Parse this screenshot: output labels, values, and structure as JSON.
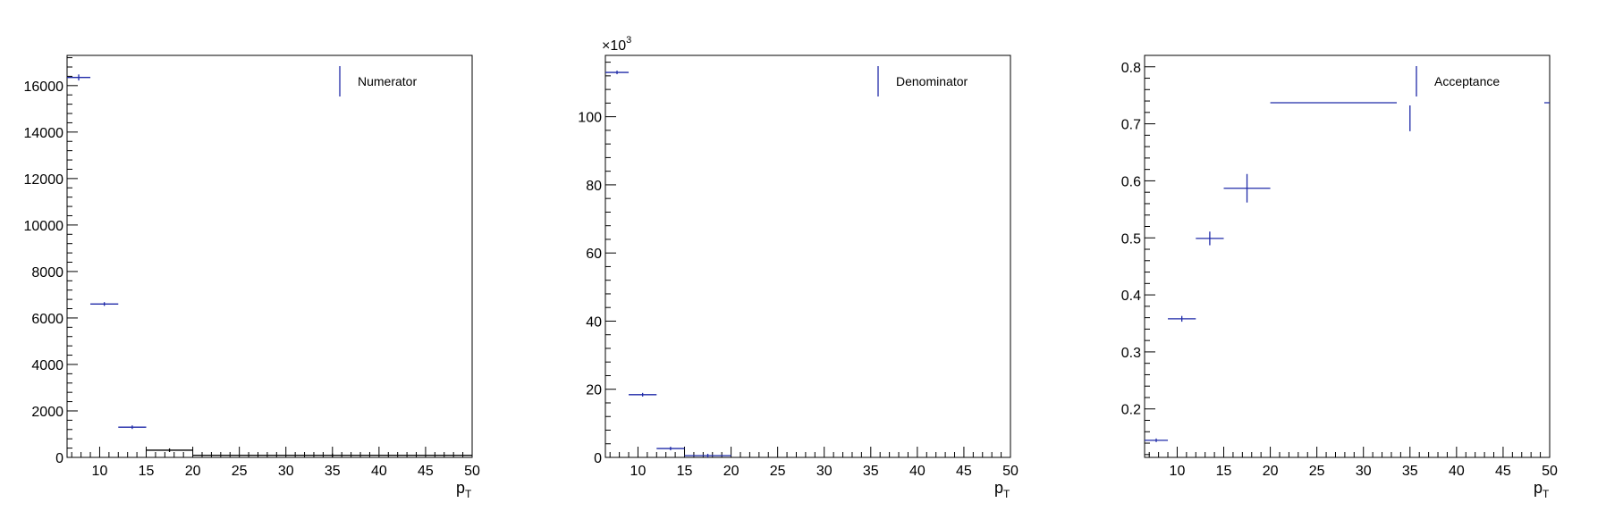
{
  "chart_data": [
    {
      "type": "scatter",
      "xlabel": "p",
      "xlabel_sub": "T",
      "xlim": [
        6.5,
        50
      ],
      "ylim": [
        0,
        17300
      ],
      "xticks": [
        10,
        15,
        20,
        25,
        30,
        35,
        40,
        45,
        50
      ],
      "xtick_labels": [
        "10",
        "15",
        "20",
        "25",
        "30",
        "35",
        "40",
        "45",
        "50"
      ],
      "yticks": [
        0,
        2000,
        4000,
        6000,
        8000,
        10000,
        12000,
        14000,
        16000
      ],
      "ytick_labels": [
        "0",
        "2000",
        "4000",
        "6000",
        "8000",
        "10000",
        "12000",
        "14000",
        "16000"
      ],
      "y_multiplier": "",
      "legend": "Numerator",
      "legend_position": "top-right",
      "marker_color": "#1f2aa8",
      "series": [
        {
          "color": "#1f2aa8",
          "points": [
            {
              "xlo": 6.5,
              "xhi": 9,
              "y": 16350,
              "yerr": 130
            },
            {
              "xlo": 9,
              "xhi": 12,
              "y": 6600,
              "yerr": 81
            },
            {
              "xlo": 12,
              "xhi": 15,
              "y": 1300,
              "yerr": 36
            }
          ]
        },
        {
          "color": "#000000",
          "points": [
            {
              "xlo": 15,
              "xhi": 20,
              "y": 310,
              "yerr": 18
            },
            {
              "xlo": 20,
              "xhi": 50,
              "y": 90,
              "yerr": 10
            }
          ]
        }
      ]
    },
    {
      "type": "scatter",
      "xlabel": "p",
      "xlabel_sub": "T",
      "xlim": [
        6.5,
        50
      ],
      "ylim": [
        0,
        118
      ],
      "xticks": [
        10,
        15,
        20,
        25,
        30,
        35,
        40,
        45,
        50
      ],
      "xtick_labels": [
        "10",
        "15",
        "20",
        "25",
        "30",
        "35",
        "40",
        "45",
        "50"
      ],
      "yticks": [
        0,
        20,
        40,
        60,
        80,
        100
      ],
      "ytick_labels": [
        "0",
        "20",
        "40",
        "60",
        "80",
        "100"
      ],
      "y_multiplier": "×10",
      "y_multiplier_exp": "3",
      "legend": "Denominator",
      "legend_position": "top-right",
      "marker_color": "#1f2aa8",
      "series": [
        {
          "color": "#1f2aa8",
          "points": [
            {
              "xlo": 6.5,
              "xhi": 9,
              "y": 113,
              "yerr": 0.34
            },
            {
              "xlo": 9,
              "xhi": 12,
              "y": 18.4,
              "yerr": 0.14
            },
            {
              "xlo": 12,
              "xhi": 15,
              "y": 2.6,
              "yerr": 0.05
            },
            {
              "xlo": 15,
              "xhi": 20,
              "y": 0.53,
              "yerr": 0.02
            }
          ]
        }
      ]
    },
    {
      "type": "scatter",
      "xlabel": "p",
      "xlabel_sub": "T",
      "xlim": [
        6.5,
        50
      ],
      "ylim": [
        0.115,
        0.82
      ],
      "xticks": [
        10,
        15,
        20,
        25,
        30,
        35,
        40,
        45,
        50
      ],
      "xtick_labels": [
        "10",
        "15",
        "20",
        "25",
        "30",
        "35",
        "40",
        "45",
        "50"
      ],
      "yticks": [
        0.2,
        0.3,
        0.4,
        0.5,
        0.6,
        0.7,
        0.8
      ],
      "ytick_labels": [
        "0.2",
        "0.3",
        "0.4",
        "0.5",
        "0.6",
        "0.7",
        "0.8"
      ],
      "y_multiplier": "",
      "legend": "Acceptance",
      "legend_position": "top-right",
      "marker_color": "#1f2aa8",
      "series": [
        {
          "color": "#1f2aa8",
          "points": [
            {
              "xlo": 6.5,
              "xhi": 9,
              "y": 0.145,
              "yerr": 0.001
            },
            {
              "xlo": 9,
              "xhi": 12,
              "y": 0.358,
              "yerr": 0.005
            },
            {
              "xlo": 12,
              "xhi": 15,
              "y": 0.499,
              "yerr": 0.012
            },
            {
              "xlo": 15,
              "xhi": 20,
              "y": 0.587,
              "yerr": 0.025
            },
            {
              "xlo": 20,
              "xhi": 50,
              "y": 0.737,
              "yerr": 0.05
            }
          ]
        }
      ]
    }
  ]
}
